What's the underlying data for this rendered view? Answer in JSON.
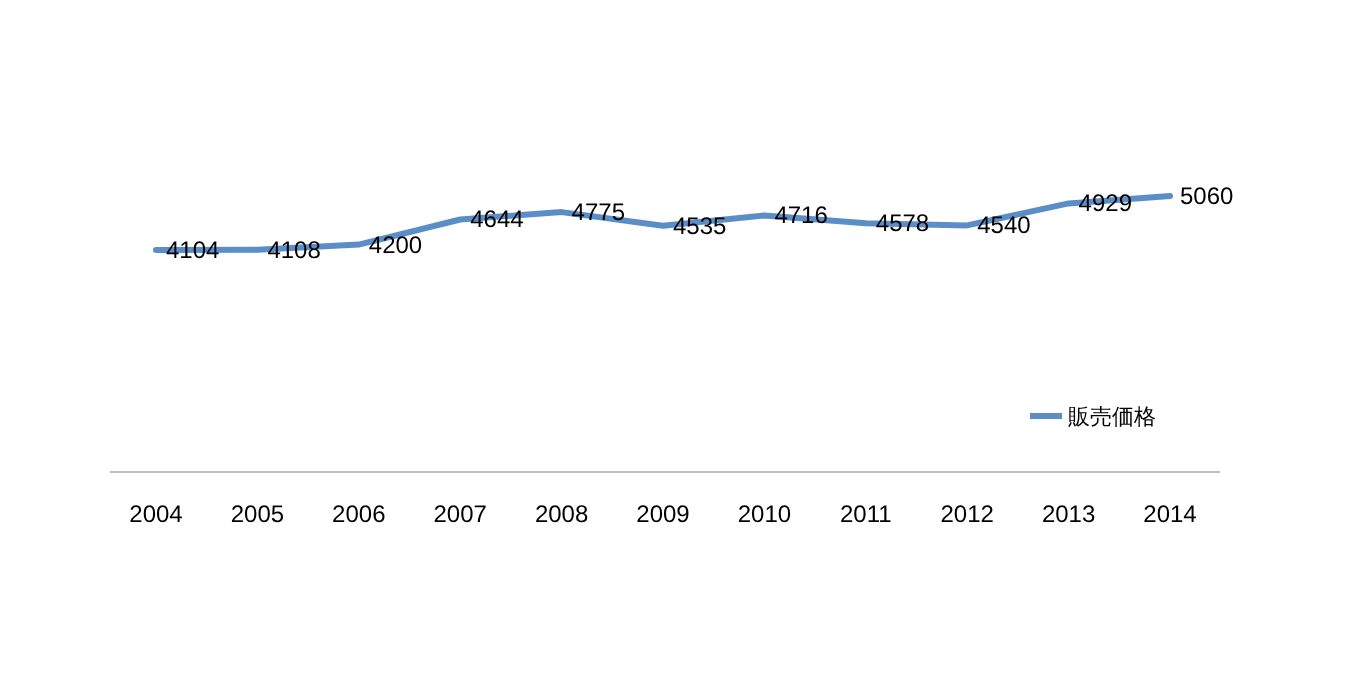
{
  "chart_data": {
    "type": "line",
    "categories": [
      "2004",
      "2005",
      "2006",
      "2007",
      "2008",
      "2009",
      "2010",
      "2011",
      "2012",
      "2013",
      "2014"
    ],
    "series": [
      {
        "name": "販売価格",
        "color": "#5b8ec7",
        "values": [
          4104,
          4108,
          4200,
          4644,
          4775,
          4535,
          4716,
          4578,
          4540,
          4929,
          5060
        ]
      }
    ],
    "data_labels": true,
    "legend": "right"
  }
}
